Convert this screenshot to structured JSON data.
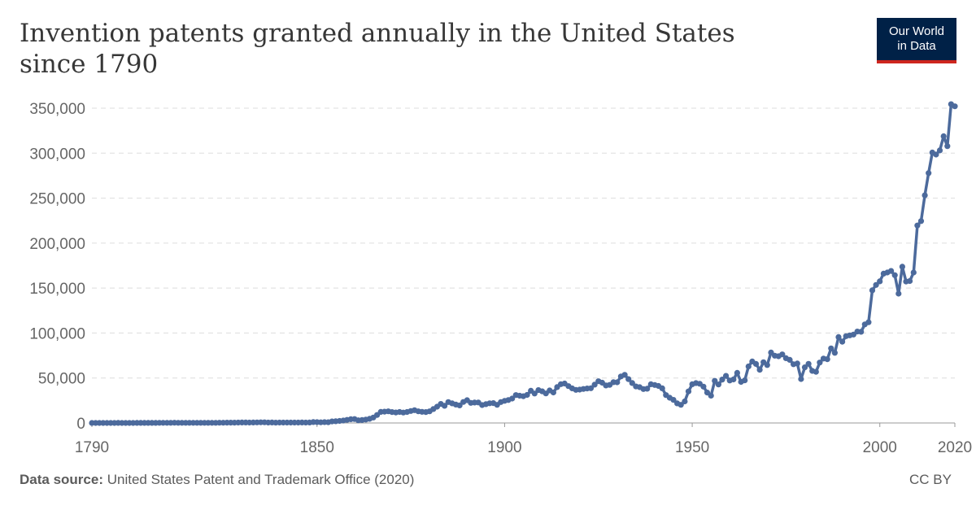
{
  "header": {
    "title": "Invention patents granted annually in the United States since 1790"
  },
  "logo": {
    "line1": "Our World",
    "line2": "in Data",
    "bg_color": "#002147",
    "accent_color": "#ce261e"
  },
  "footer": {
    "source_label": "Data source:",
    "source_text": "United States Patent and Trademark Office (2020)",
    "license": "CC BY"
  },
  "chart_data": {
    "type": "line",
    "xlim": [
      1790,
      2020
    ],
    "ylim": [
      0,
      350000
    ],
    "yticks": [
      0,
      50000,
      100000,
      150000,
      200000,
      250000,
      300000,
      350000
    ],
    "ytick_labels": [
      "0",
      "50,000",
      "100,000",
      "150,000",
      "200,000",
      "250,000",
      "300,000",
      "350,000"
    ],
    "xticks": [
      1790,
      1850,
      1900,
      1950,
      2000,
      2020
    ],
    "xtick_labels": [
      "1790",
      "1850",
      "1900",
      "1950",
      "2000",
      "2020"
    ],
    "grid": "horizontal-dashed",
    "line_color": "#4c6a9c",
    "series": [
      {
        "values": [
          [
            1790,
            3
          ],
          [
            1791,
            33
          ],
          [
            1792,
            11
          ],
          [
            1793,
            20
          ],
          [
            1794,
            22
          ],
          [
            1795,
            12
          ],
          [
            1796,
            44
          ],
          [
            1797,
            51
          ],
          [
            1798,
            28
          ],
          [
            1799,
            44
          ],
          [
            1800,
            41
          ],
          [
            1801,
            44
          ],
          [
            1802,
            65
          ],
          [
            1803,
            97
          ],
          [
            1804,
            84
          ],
          [
            1805,
            57
          ],
          [
            1806,
            63
          ],
          [
            1807,
            99
          ],
          [
            1808,
            158
          ],
          [
            1809,
            203
          ],
          [
            1810,
            223
          ],
          [
            1811,
            215
          ],
          [
            1812,
            238
          ],
          [
            1813,
            181
          ],
          [
            1814,
            210
          ],
          [
            1815,
            173
          ],
          [
            1816,
            206
          ],
          [
            1817,
            174
          ],
          [
            1818,
            222
          ],
          [
            1819,
            156
          ],
          [
            1820,
            155
          ],
          [
            1821,
            168
          ],
          [
            1822,
            200
          ],
          [
            1823,
            173
          ],
          [
            1824,
            228
          ],
          [
            1825,
            304
          ],
          [
            1826,
            323
          ],
          [
            1827,
            331
          ],
          [
            1828,
            368
          ],
          [
            1829,
            447
          ],
          [
            1830,
            544
          ],
          [
            1831,
            573
          ],
          [
            1832,
            474
          ],
          [
            1833,
            586
          ],
          [
            1834,
            630
          ],
          [
            1835,
            752
          ],
          [
            1836,
            702
          ],
          [
            1837,
            426
          ],
          [
            1838,
            514
          ],
          [
            1839,
            404
          ],
          [
            1840,
            458
          ],
          [
            1841,
            490
          ],
          [
            1842,
            488
          ],
          [
            1843,
            493
          ],
          [
            1844,
            478
          ],
          [
            1845,
            473
          ],
          [
            1846,
            566
          ],
          [
            1847,
            495
          ],
          [
            1848,
            583
          ],
          [
            1849,
            984
          ],
          [
            1850,
            883
          ],
          [
            1851,
            752
          ],
          [
            1852,
            885
          ],
          [
            1853,
            844
          ],
          [
            1854,
            1755
          ],
          [
            1855,
            1881
          ],
          [
            1856,
            2302
          ],
          [
            1857,
            2674
          ],
          [
            1858,
            3455
          ],
          [
            1859,
            4160
          ],
          [
            1860,
            4357
          ],
          [
            1861,
            3020
          ],
          [
            1862,
            3214
          ],
          [
            1863,
            3773
          ],
          [
            1864,
            4630
          ],
          [
            1865,
            6088
          ],
          [
            1866,
            8863
          ],
          [
            1867,
            12277
          ],
          [
            1868,
            12526
          ],
          [
            1869,
            12931
          ],
          [
            1870,
            12137
          ],
          [
            1871,
            11659
          ],
          [
            1872,
            12180
          ],
          [
            1873,
            11616
          ],
          [
            1874,
            12230
          ],
          [
            1875,
            13291
          ],
          [
            1876,
            14169
          ],
          [
            1877,
            12920
          ],
          [
            1878,
            12345
          ],
          [
            1879,
            12133
          ],
          [
            1880,
            12903
          ],
          [
            1881,
            15500
          ],
          [
            1882,
            18091
          ],
          [
            1883,
            21162
          ],
          [
            1884,
            19118
          ],
          [
            1885,
            23285
          ],
          [
            1886,
            21767
          ],
          [
            1887,
            20403
          ],
          [
            1888,
            19551
          ],
          [
            1889,
            23324
          ],
          [
            1890,
            25313
          ],
          [
            1891,
            22312
          ],
          [
            1892,
            22661
          ],
          [
            1893,
            22768
          ],
          [
            1894,
            19875
          ],
          [
            1895,
            20856
          ],
          [
            1896,
            21867
          ],
          [
            1897,
            22098
          ],
          [
            1898,
            20188
          ],
          [
            1899,
            23278
          ],
          [
            1900,
            24644
          ],
          [
            1901,
            25546
          ],
          [
            1902,
            27136
          ],
          [
            1903,
            31029
          ],
          [
            1904,
            30258
          ],
          [
            1905,
            29775
          ],
          [
            1906,
            31170
          ],
          [
            1907,
            35859
          ],
          [
            1908,
            32757
          ],
          [
            1909,
            36561
          ],
          [
            1910,
            35141
          ],
          [
            1911,
            32856
          ],
          [
            1912,
            36198
          ],
          [
            1913,
            33917
          ],
          [
            1914,
            39892
          ],
          [
            1915,
            43118
          ],
          [
            1916,
            43892
          ],
          [
            1917,
            40935
          ],
          [
            1918,
            38452
          ],
          [
            1919,
            36797
          ],
          [
            1920,
            37060
          ],
          [
            1921,
            37798
          ],
          [
            1922,
            38369
          ],
          [
            1923,
            38616
          ],
          [
            1924,
            42574
          ],
          [
            1925,
            46432
          ],
          [
            1926,
            44733
          ],
          [
            1927,
            41717
          ],
          [
            1928,
            42357
          ],
          [
            1929,
            45267
          ],
          [
            1930,
            45226
          ],
          [
            1931,
            51756
          ],
          [
            1932,
            53504
          ],
          [
            1933,
            48774
          ],
          [
            1934,
            44420
          ],
          [
            1935,
            40618
          ],
          [
            1936,
            39831
          ],
          [
            1937,
            37683
          ],
          [
            1938,
            38061
          ],
          [
            1939,
            43073
          ],
          [
            1940,
            42238
          ],
          [
            1941,
            41109
          ],
          [
            1942,
            38514
          ],
          [
            1943,
            31054
          ],
          [
            1944,
            28053
          ],
          [
            1945,
            25695
          ],
          [
            1946,
            21803
          ],
          [
            1947,
            20139
          ],
          [
            1948,
            23963
          ],
          [
            1949,
            35131
          ],
          [
            1950,
            43040
          ],
          [
            1951,
            44326
          ],
          [
            1952,
            43616
          ],
          [
            1953,
            40468
          ],
          [
            1954,
            33809
          ],
          [
            1955,
            30432
          ],
          [
            1956,
            46817
          ],
          [
            1957,
            42744
          ],
          [
            1958,
            48330
          ],
          [
            1959,
            52408
          ],
          [
            1960,
            47170
          ],
          [
            1961,
            48368
          ],
          [
            1962,
            55691
          ],
          [
            1963,
            45679
          ],
          [
            1964,
            47376
          ],
          [
            1965,
            62857
          ],
          [
            1966,
            68406
          ],
          [
            1967,
            65652
          ],
          [
            1968,
            59104
          ],
          [
            1969,
            67559
          ],
          [
            1970,
            64429
          ],
          [
            1971,
            78317
          ],
          [
            1972,
            74810
          ],
          [
            1973,
            74143
          ],
          [
            1974,
            76278
          ],
          [
            1975,
            72000
          ],
          [
            1976,
            70226
          ],
          [
            1977,
            65269
          ],
          [
            1978,
            66102
          ],
          [
            1979,
            48854
          ],
          [
            1980,
            61819
          ],
          [
            1981,
            65771
          ],
          [
            1982,
            57888
          ],
          [
            1983,
            56860
          ],
          [
            1984,
            67200
          ],
          [
            1985,
            71661
          ],
          [
            1986,
            70860
          ],
          [
            1987,
            82952
          ],
          [
            1988,
            77924
          ],
          [
            1989,
            95537
          ],
          [
            1990,
            90365
          ],
          [
            1991,
            96511
          ],
          [
            1992,
            97444
          ],
          [
            1993,
            98342
          ],
          [
            1994,
            101676
          ],
          [
            1995,
            101419
          ],
          [
            1996,
            109645
          ],
          [
            1997,
            111984
          ],
          [
            1998,
            147517
          ],
          [
            1999,
            153485
          ],
          [
            2000,
            157494
          ],
          [
            2001,
            166035
          ],
          [
            2002,
            167331
          ],
          [
            2003,
            169023
          ],
          [
            2004,
            164290
          ],
          [
            2005,
            143806
          ],
          [
            2006,
            173772
          ],
          [
            2007,
            157282
          ],
          [
            2008,
            157772
          ],
          [
            2009,
            167349
          ],
          [
            2010,
            219614
          ],
          [
            2011,
            224505
          ],
          [
            2012,
            253155
          ],
          [
            2013,
            277835
          ],
          [
            2014,
            300678
          ],
          [
            2015,
            298407
          ],
          [
            2016,
            303049
          ],
          [
            2017,
            318829
          ],
          [
            2018,
            307759
          ],
          [
            2019,
            354430
          ],
          [
            2020,
            352049
          ]
        ]
      }
    ]
  }
}
